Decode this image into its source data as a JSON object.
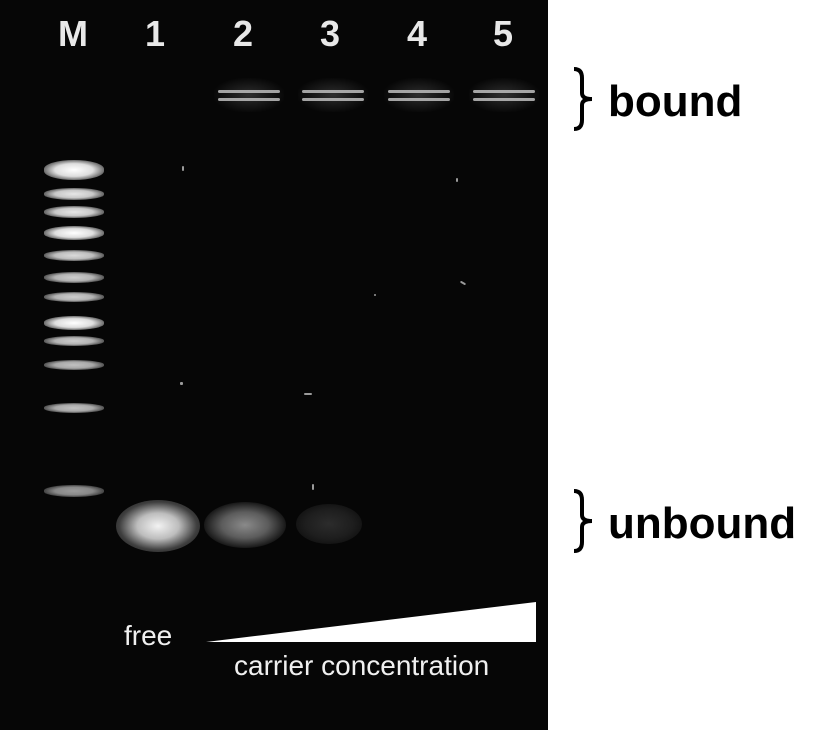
{
  "lanes": [
    "M",
    "1",
    "2",
    "3",
    "4",
    "5"
  ],
  "labels": {
    "bound": "bound",
    "unbound": "unbound",
    "free": "free",
    "carrier_concentration": "carrier concentration"
  },
  "band_intensity": {
    "unbound": [
      1.0,
      0.55,
      0.18,
      0.0,
      0.0
    ],
    "bound": [
      0.0,
      0.7,
      0.75,
      0.8,
      0.8
    ]
  }
}
